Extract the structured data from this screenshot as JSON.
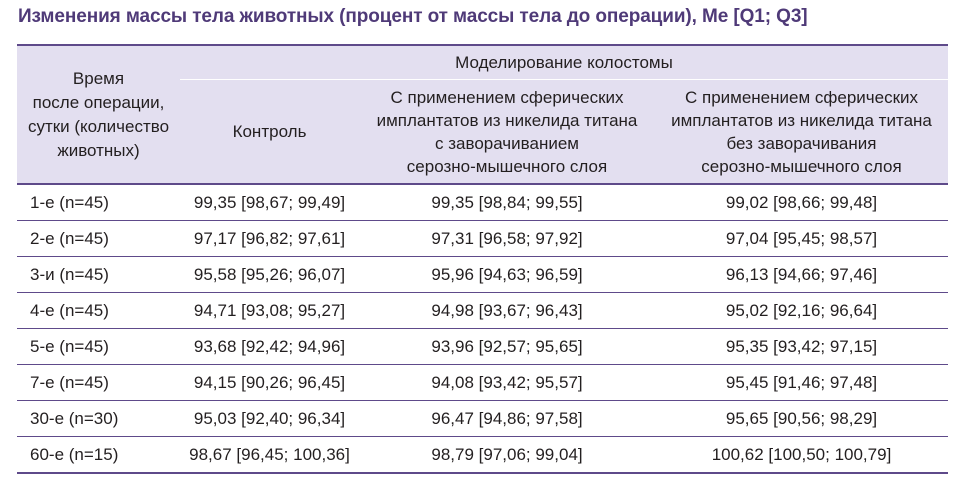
{
  "caption": "Изменения массы тела животных (процент от массы тела до операции), Ме [Q1; Q3]",
  "header": {
    "rowhead": [
      "Время",
      "после операции,",
      "сутки (количество",
      "животных)"
    ],
    "group": "Моделирование колостомы",
    "control": "Контроль",
    "with_invagination": [
      "С применением сферических",
      "имплантатов из никелида титана",
      "с заворачиванием",
      "серозно-мышечного слоя"
    ],
    "without_invagination": [
      "С применением сферических",
      "имплантатов из никелида титана",
      "без заворачивания",
      "серозно-мышечного слоя"
    ]
  },
  "rows": [
    {
      "day": "1-е (n=45)",
      "control": "99,35 [98,67; 99,49]",
      "with": "99,35 [98,84; 99,55]",
      "without": "99,02 [98,66; 99,48]"
    },
    {
      "day": "2-е (n=45)",
      "control": "97,17 [96,82; 97,61]",
      "with": "97,31 [96,58; 97,92]",
      "without": "97,04 [95,45; 98,57]"
    },
    {
      "day": "3-и (n=45)",
      "control": "95,58 [95,26; 96,07]",
      "with": "95,96 [94,63; 96,59]",
      "without": "96,13 [94,66; 97,46]"
    },
    {
      "day": "4-е (n=45)",
      "control": "94,71 [93,08; 95,27]",
      "with": "94,98 [93,67; 96,43]",
      "without": "95,02 [92,16; 96,64]"
    },
    {
      "day": "5-е (n=45)",
      "control": "93,68 [92,42; 94,96]",
      "with": "93,96 [92,57; 95,65]",
      "without": "95,35 [93,42; 97,15]"
    },
    {
      "day": "7-е (n=45)",
      "control": "94,15 [90,26; 96,45]",
      "with": "94,08 [93,42; 95,57]",
      "without": "95,45 [91,46; 97,48]"
    },
    {
      "day": "30-е (n=30)",
      "control": "95,03 [92,40; 96,34]",
      "with": "96,47 [94,86; 97,58]",
      "without": "95,65 [90,56; 98,29]"
    },
    {
      "day": "60-е (n=15)",
      "control": "98,67 [96,45; 100,36]",
      "with": "98,79 [97,06; 99,04]",
      "without": "100,62 [100,50; 100,79]"
    }
  ],
  "colors": {
    "caption": "#4f3a78",
    "header_bg": "#e3dff0",
    "rule": "#5e4a8a"
  }
}
